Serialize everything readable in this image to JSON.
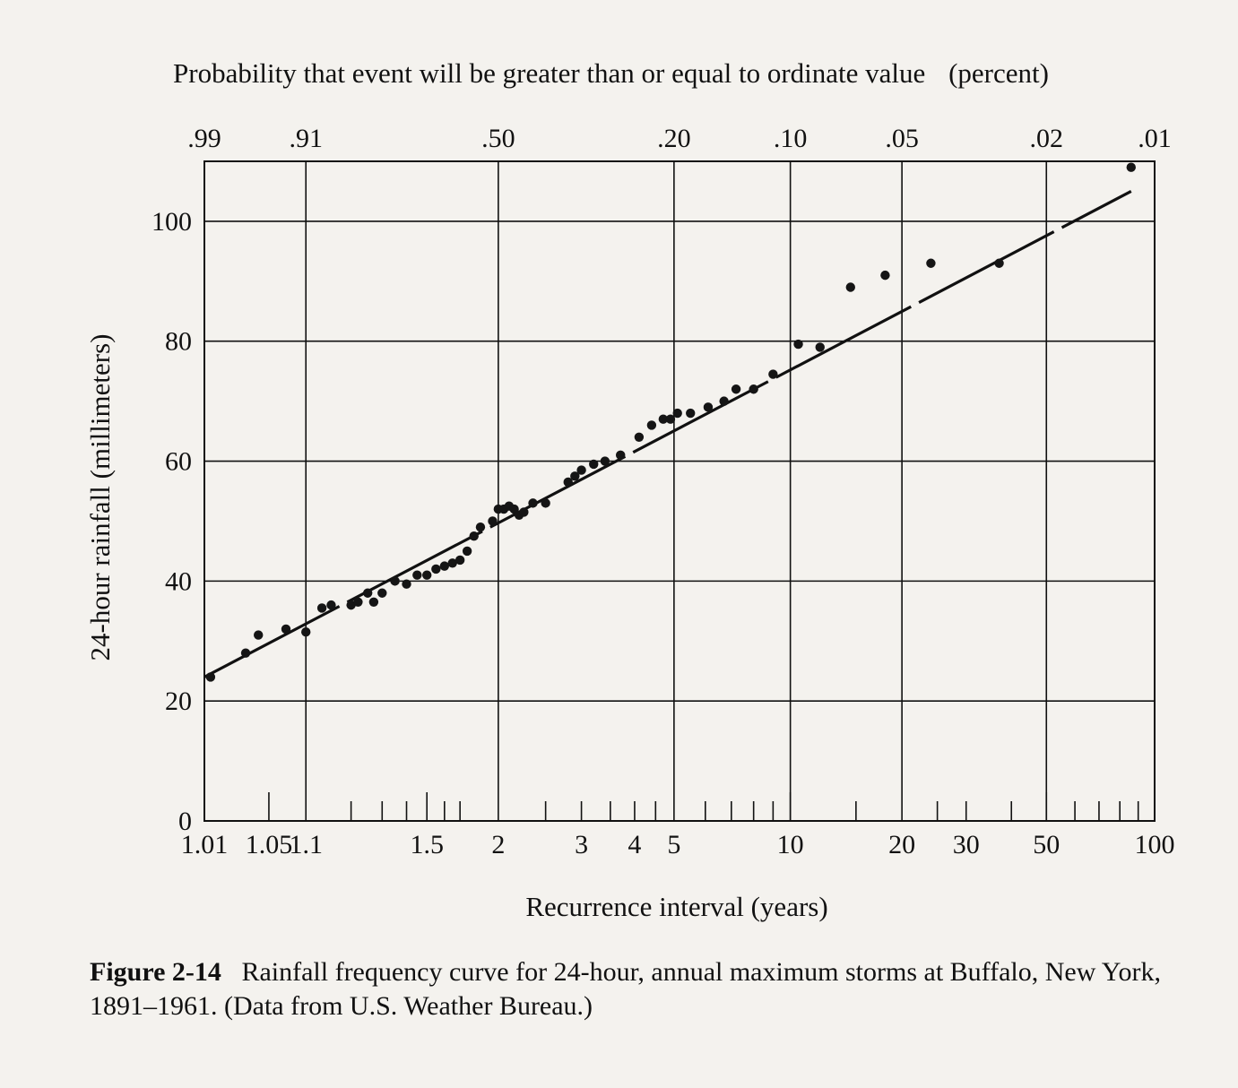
{
  "chart_data": {
    "type": "scatter",
    "top_axis_title": "Probability that event will be greater than or equal to ordinate value",
    "top_axis_unit": "(percent)",
    "xlabel": "Recurrence interval (years)",
    "ylabel": "24-hour  rainfall (millimeters)",
    "x_scale": "log(T/(T-1))",
    "ylim": [
      0,
      110
    ],
    "xlim": [
      1.01,
      100
    ],
    "grid": true,
    "x_tick_labels": [
      "1.01",
      "1.05",
      "1.1",
      "1.5",
      "2",
      "3",
      "4",
      "5",
      "10",
      "20",
      "30",
      "50",
      "100"
    ],
    "x_tick_values": [
      1.01,
      1.05,
      1.1,
      1.5,
      2,
      3,
      4,
      5,
      10,
      20,
      30,
      50,
      100
    ],
    "top_tick_labels": [
      ".99",
      ".91",
      ".50",
      ".20",
      ".10",
      ".05",
      ".02",
      ".01"
    ],
    "top_tick_values": [
      1.01,
      1.1,
      2,
      5,
      10,
      20,
      50,
      100
    ],
    "y_tick_labels": [
      "0",
      "20",
      "40",
      "60",
      "80",
      "100"
    ],
    "y_tick_values": [
      0,
      20,
      40,
      60,
      80,
      100
    ],
    "series": [
      {
        "kind": "points",
        "x": [
          1.012,
          1.03,
          1.04,
          1.07,
          1.1,
          1.13,
          1.15,
          1.2,
          1.22,
          1.25,
          1.27,
          1.3,
          1.35,
          1.4,
          1.45,
          1.5,
          1.55,
          1.6,
          1.65,
          1.7,
          1.75,
          1.8,
          1.85,
          1.95,
          2.0,
          2.05,
          2.1,
          2.15,
          2.2,
          2.25,
          2.35,
          2.5,
          2.8,
          2.9,
          3.0,
          3.2,
          3.4,
          3.7,
          4.1,
          4.4,
          4.7,
          4.9,
          5.1,
          5.5,
          6.1,
          6.7,
          7.2,
          8.0,
          9.0,
          10.5,
          12.0,
          14.5,
          18.0,
          24.0,
          37.0,
          86.0
        ],
        "y": [
          24,
          28,
          31,
          32,
          31.5,
          35.5,
          36,
          36,
          36.5,
          38,
          36.5,
          38,
          40,
          39.5,
          41,
          41,
          42,
          42.5,
          43,
          43.5,
          45,
          47.5,
          49,
          50,
          52,
          52,
          52.5,
          52,
          51,
          51.5,
          53,
          53,
          56.5,
          57.5,
          58.5,
          59.5,
          60,
          61,
          64,
          66,
          67,
          67,
          68,
          68,
          69,
          70,
          72,
          72,
          74.5,
          79.5,
          79,
          89,
          91,
          93,
          93,
          109
        ]
      },
      {
        "kind": "fit-line",
        "x": [
          1.01,
          86
        ],
        "y": [
          24,
          105
        ]
      }
    ]
  },
  "caption": {
    "label": "Figure 2-14",
    "text": "Rainfall frequency curve for 24-hour, annual maximum storms at Buffalo, New York, 1891–1961. (Data from U.S. Weather Bureau.)"
  }
}
